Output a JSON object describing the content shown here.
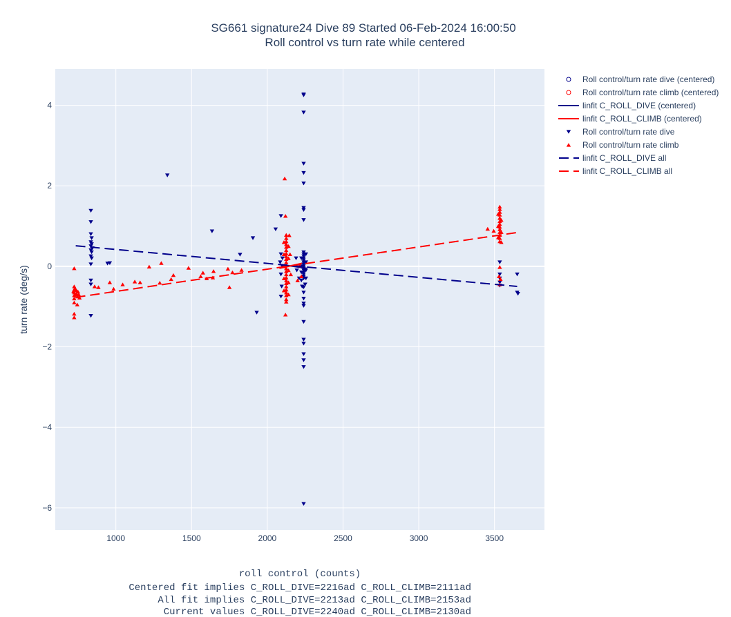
{
  "chart_data": {
    "type": "scatter",
    "title": "SG661 signature24 Dive 89 Started 06-Feb-2024 16:00:50",
    "subtitle": "Roll control vs turn rate while centered",
    "xlabel": "roll control (counts)",
    "ylabel": "turn rate (deg/s)",
    "xlim": [
      600,
      3830
    ],
    "ylim": [
      -6.55,
      4.9
    ],
    "x_ticks": [
      1000,
      1500,
      2000,
      2500,
      3000,
      3500
    ],
    "y_ticks": [
      -6,
      -4,
      -2,
      0,
      2,
      4
    ],
    "x_tick_labels": [
      "1000",
      "1500",
      "2000",
      "2500",
      "3000",
      "3500"
    ],
    "y_tick_labels": [
      "−6",
      "−4",
      "−2",
      "0",
      "2",
      "4"
    ],
    "grid": true,
    "legend_position": "right",
    "notes": [
      "Centered fit implies C_ROLL_DIVE=2216ad C_ROLL_CLIMB=2111ad",
      "All fit implies C_ROLL_DIVE=2213ad C_ROLL_CLIMB=2153ad",
      "Current values C_ROLL_DIVE=2240ad C_ROLL_CLIMB=2130ad"
    ],
    "series": [
      {
        "name": "Roll control/turn rate dive (centered)",
        "kind": "marker",
        "marker": "circle-open",
        "color": "#00008b",
        "points": []
      },
      {
        "name": "Roll control/turn rate climb (centered)",
        "kind": "marker",
        "marker": "circle-open",
        "color": "#ff0000",
        "points": []
      },
      {
        "name": "linfit C_ROLL_DIVE (centered)",
        "kind": "line",
        "dash": "solid",
        "color": "#00008b",
        "points": [
          [
            2080,
            0.05
          ],
          [
            2260,
            -0.05
          ]
        ]
      },
      {
        "name": "linfit C_ROLL_CLIMB (centered)",
        "kind": "line",
        "dash": "solid",
        "color": "#ff0000",
        "points": [
          [
            2080,
            -0.05
          ],
          [
            2260,
            0.1
          ]
        ]
      },
      {
        "name": "Roll control/turn rate dive",
        "kind": "marker",
        "marker": "triangle-down",
        "color": "#00008b",
        "points": [
          [
            835,
            1.38
          ],
          [
            835,
            1.1
          ],
          [
            835,
            0.8
          ],
          [
            840,
            0.7
          ],
          [
            835,
            0.6
          ],
          [
            840,
            0.55
          ],
          [
            835,
            0.5
          ],
          [
            845,
            0.45
          ],
          [
            835,
            0.4
          ],
          [
            840,
            0.35
          ],
          [
            835,
            0.25
          ],
          [
            840,
            0.2
          ],
          [
            835,
            0.05
          ],
          [
            835,
            -0.35
          ],
          [
            835,
            -0.45
          ],
          [
            835,
            -1.23
          ],
          [
            945,
            0.07
          ],
          [
            960,
            0.08
          ],
          [
            1340,
            2.26
          ],
          [
            1635,
            0.87
          ],
          [
            1820,
            0.29
          ],
          [
            1905,
            0.7
          ],
          [
            1930,
            -1.15
          ],
          [
            2055,
            0.92
          ],
          [
            2090,
            1.25
          ],
          [
            2090,
            0.3
          ],
          [
            2085,
            0.1
          ],
          [
            2090,
            -0.2
          ],
          [
            2095,
            -0.5
          ],
          [
            2090,
            -0.75
          ],
          [
            2100,
            0.0
          ],
          [
            2100,
            0.2
          ],
          [
            2240,
            4.27
          ],
          [
            2240,
            4.25
          ],
          [
            2240,
            3.82
          ],
          [
            2240,
            2.55
          ],
          [
            2240,
            2.32
          ],
          [
            2240,
            2.06
          ],
          [
            2240,
            1.45
          ],
          [
            2240,
            1.4
          ],
          [
            2240,
            1.15
          ],
          [
            2240,
            0.35
          ],
          [
            2240,
            0.3
          ],
          [
            2240,
            0.25
          ],
          [
            2240,
            0.2
          ],
          [
            2240,
            0.15
          ],
          [
            2240,
            0.1
          ],
          [
            2240,
            0.05
          ],
          [
            2240,
            0.0
          ],
          [
            2240,
            -0.05
          ],
          [
            2240,
            -0.1
          ],
          [
            2240,
            -0.15
          ],
          [
            2240,
            -0.2
          ],
          [
            2240,
            -0.25
          ],
          [
            2240,
            -0.3
          ],
          [
            2225,
            0.2
          ],
          [
            2225,
            0.0
          ],
          [
            2225,
            -0.15
          ],
          [
            2225,
            -0.35
          ],
          [
            2255,
            0.3
          ],
          [
            2255,
            0.1
          ],
          [
            2255,
            -0.1
          ],
          [
            2255,
            -0.3
          ],
          [
            2230,
            -0.5
          ],
          [
            2250,
            -0.45
          ],
          [
            2190,
            0.2
          ],
          [
            2195,
            -0.1
          ],
          [
            2210,
            -0.3
          ],
          [
            2240,
            -0.52
          ],
          [
            2240,
            -0.65
          ],
          [
            2240,
            -0.8
          ],
          [
            2240,
            -0.92
          ],
          [
            2240,
            -0.98
          ],
          [
            2240,
            -1.38
          ],
          [
            2240,
            -1.82
          ],
          [
            2240,
            -1.92
          ],
          [
            2240,
            -2.18
          ],
          [
            2240,
            -2.33
          ],
          [
            2240,
            -2.5
          ],
          [
            2240,
            -5.9
          ],
          [
            3535,
            0.1
          ],
          [
            3535,
            -0.2
          ],
          [
            3535,
            -0.3
          ],
          [
            3535,
            -0.4
          ],
          [
            3535,
            -0.48
          ],
          [
            3650,
            -0.2
          ],
          [
            3650,
            -0.65
          ],
          [
            3655,
            -0.68
          ]
        ]
      },
      {
        "name": "Roll control/turn rate climb",
        "kind": "marker",
        "marker": "triangle-up",
        "color": "#ff0000",
        "points": [
          [
            725,
            -0.05
          ],
          [
            725,
            -0.5
          ],
          [
            725,
            -0.58
          ],
          [
            725,
            -0.65
          ],
          [
            725,
            -0.72
          ],
          [
            725,
            -0.8
          ],
          [
            725,
            -0.9
          ],
          [
            725,
            -1.18
          ],
          [
            725,
            -1.27
          ],
          [
            720,
            -0.62
          ],
          [
            730,
            -0.55
          ],
          [
            730,
            -0.7
          ],
          [
            740,
            -0.6
          ],
          [
            740,
            -0.68
          ],
          [
            745,
            -0.75
          ],
          [
            745,
            -0.95
          ],
          [
            750,
            -0.63
          ],
          [
            755,
            -0.7
          ],
          [
            760,
            -0.78
          ],
          [
            860,
            -0.5
          ],
          [
            885,
            -0.52
          ],
          [
            960,
            -0.4
          ],
          [
            985,
            -0.56
          ],
          [
            1045,
            -0.45
          ],
          [
            1125,
            -0.38
          ],
          [
            1160,
            -0.4
          ],
          [
            1220,
            -0.01
          ],
          [
            1290,
            -0.41
          ],
          [
            1300,
            0.08
          ],
          [
            1365,
            -0.32
          ],
          [
            1380,
            -0.22
          ],
          [
            1480,
            -0.04
          ],
          [
            1560,
            -0.25
          ],
          [
            1575,
            -0.16
          ],
          [
            1600,
            -0.3
          ],
          [
            1640,
            -0.28
          ],
          [
            1645,
            -0.12
          ],
          [
            1740,
            -0.06
          ],
          [
            1750,
            -0.52
          ],
          [
            1770,
            -0.15
          ],
          [
            1830,
            -0.09
          ],
          [
            2115,
            2.18
          ],
          [
            2120,
            1.25
          ],
          [
            2125,
            0.78
          ],
          [
            2125,
            0.7
          ],
          [
            2125,
            0.62
          ],
          [
            2125,
            0.55
          ],
          [
            2125,
            0.48
          ],
          [
            2125,
            0.4
          ],
          [
            2125,
            0.32
          ],
          [
            2125,
            0.25
          ],
          [
            2125,
            0.18
          ],
          [
            2125,
            0.1
          ],
          [
            2125,
            0.02
          ],
          [
            2125,
            -0.05
          ],
          [
            2125,
            -0.12
          ],
          [
            2125,
            -0.2
          ],
          [
            2125,
            -0.28
          ],
          [
            2125,
            -0.35
          ],
          [
            2125,
            -0.42
          ],
          [
            2125,
            -0.5
          ],
          [
            2125,
            -0.58
          ],
          [
            2125,
            -0.65
          ],
          [
            2125,
            -0.72
          ],
          [
            2125,
            -0.82
          ],
          [
            2125,
            -0.88
          ],
          [
            2120,
            -1.2
          ],
          [
            2110,
            0.6
          ],
          [
            2110,
            0.3
          ],
          [
            2110,
            0.0
          ],
          [
            2110,
            -0.3
          ],
          [
            2110,
            -0.6
          ],
          [
            2140,
            0.5
          ],
          [
            2140,
            0.2
          ],
          [
            2140,
            -0.1
          ],
          [
            2140,
            -0.4
          ],
          [
            2140,
            -0.7
          ],
          [
            2145,
            0.77
          ],
          [
            2150,
            0.3
          ],
          [
            2155,
            -0.2
          ],
          [
            2200,
            -0.35
          ],
          [
            2215,
            0.02
          ],
          [
            2225,
            -0.25
          ],
          [
            3455,
            0.93
          ],
          [
            3495,
            0.88
          ],
          [
            3535,
            1.48
          ],
          [
            3535,
            1.42
          ],
          [
            3535,
            1.35
          ],
          [
            3535,
            1.28
          ],
          [
            3535,
            1.2
          ],
          [
            3535,
            1.12
          ],
          [
            3535,
            1.05
          ],
          [
            3535,
            0.98
          ],
          [
            3535,
            0.92
          ],
          [
            3535,
            0.85
          ],
          [
            3535,
            0.78
          ],
          [
            3535,
            0.7
          ],
          [
            3535,
            0.62
          ],
          [
            3525,
            1.3
          ],
          [
            3525,
            1.0
          ],
          [
            3525,
            0.72
          ],
          [
            3545,
            1.15
          ],
          [
            3545,
            0.85
          ],
          [
            3545,
            0.6
          ],
          [
            3535,
            -0.02
          ],
          [
            3530,
            -0.25
          ],
          [
            3540,
            -0.32
          ],
          [
            3535,
            -0.45
          ]
        ]
      },
      {
        "name": "linfit C_ROLL_DIVE all",
        "kind": "line",
        "dash": "dash",
        "color": "#00008b",
        "points": [
          [
            735,
            0.51
          ],
          [
            3650,
            -0.5
          ]
        ]
      },
      {
        "name": "linfit C_ROLL_CLIMB all",
        "kind": "line",
        "dash": "dash",
        "color": "#ff0000",
        "points": [
          [
            735,
            -0.77
          ],
          [
            3650,
            0.84
          ]
        ]
      }
    ]
  }
}
